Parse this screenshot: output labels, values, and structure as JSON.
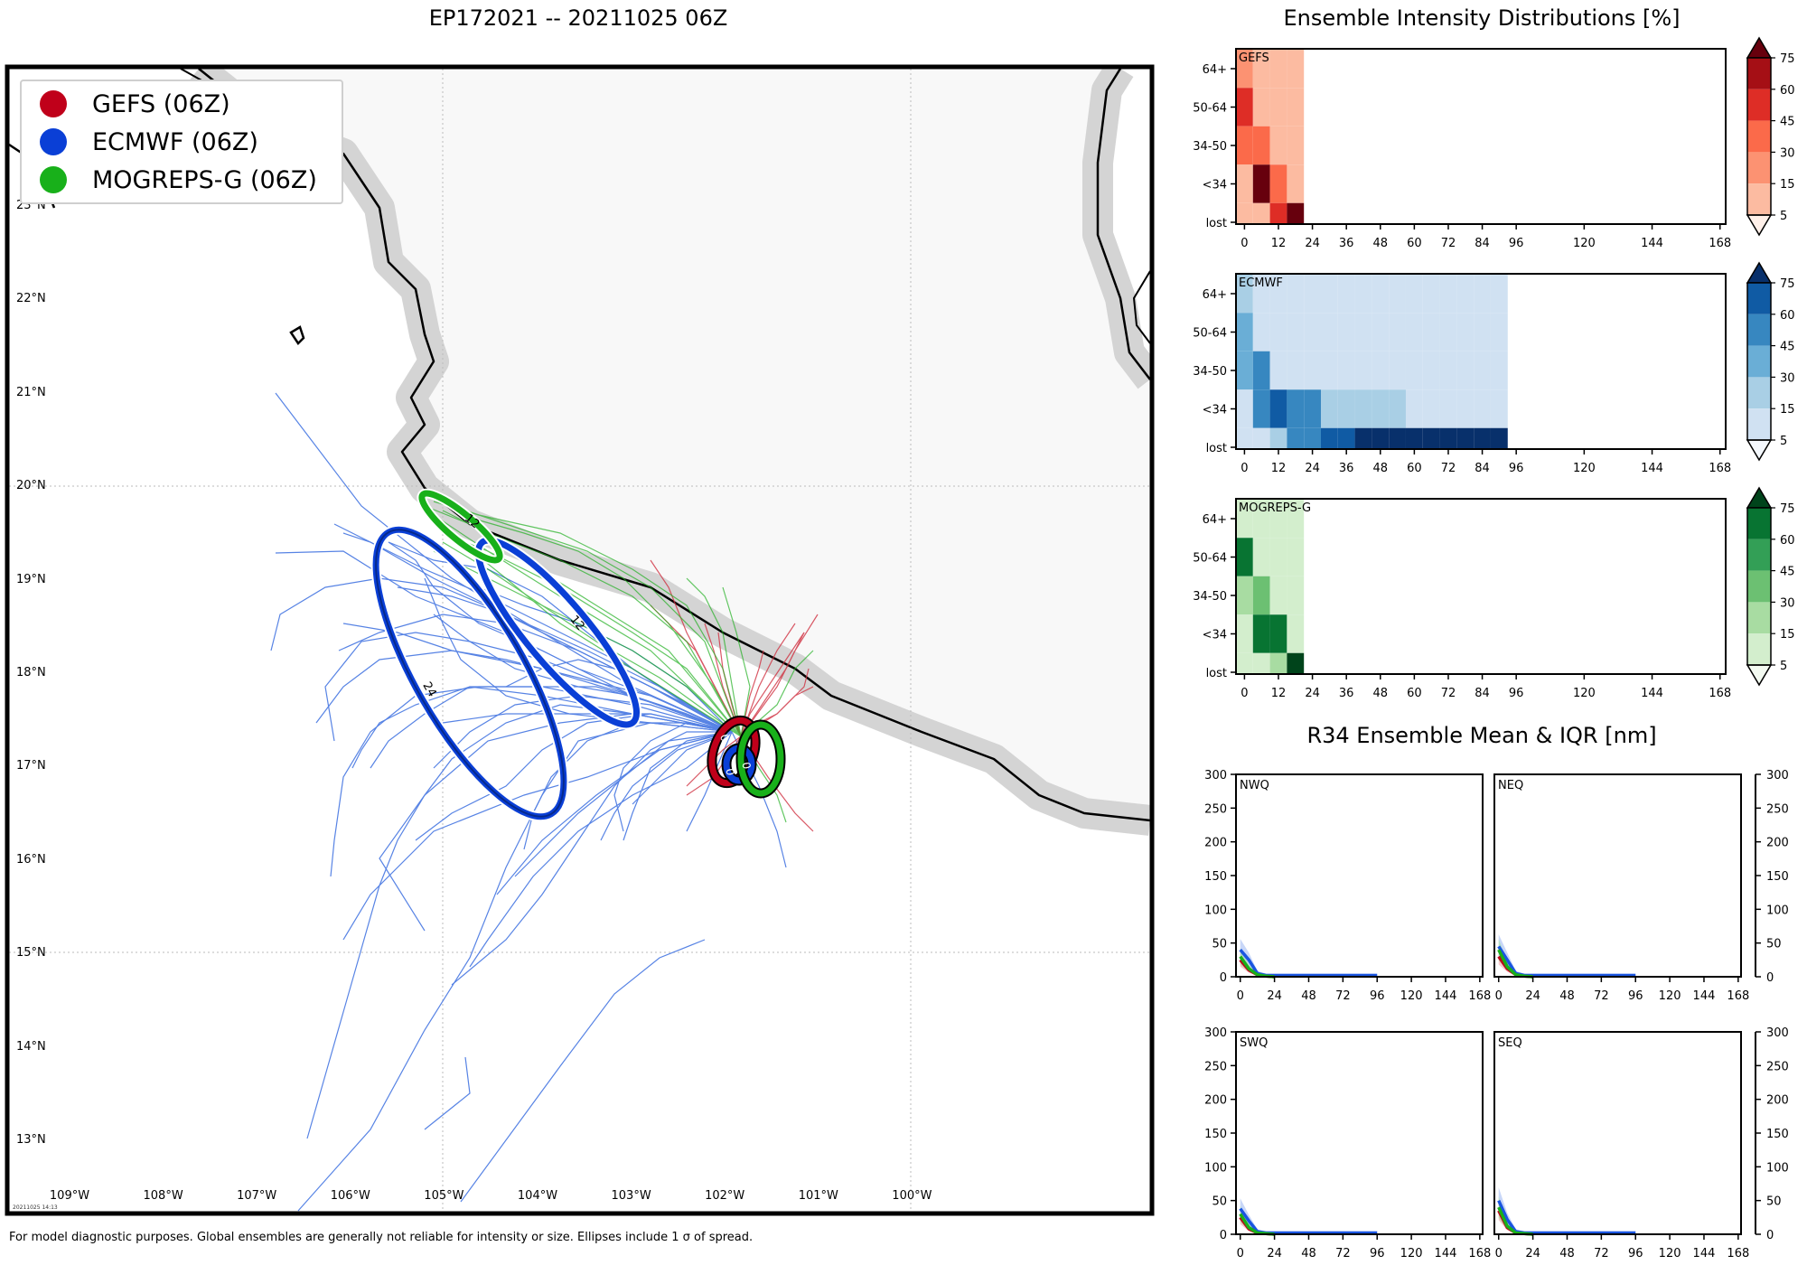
{
  "map": {
    "title": "EP172021 -- 20211025 06Z",
    "footnote": "For model diagnostic purposes. Global ensembles are generally not reliable for intensity or size. Ellipses include 1 σ of spread.",
    "stamp": "20211025 14:13",
    "lat_labels": [
      "23°N",
      "22°N",
      "21°N",
      "20°N",
      "19°N",
      "18°N",
      "17°N",
      "16°N",
      "15°N",
      "14°N",
      "13°N"
    ],
    "lon_labels": [
      "109°W",
      "108°W",
      "107°W",
      "106°W",
      "105°W",
      "104°W",
      "103°W",
      "102°W",
      "101°W",
      "100°W"
    ],
    "legend": [
      {
        "label": "GEFS (06Z)",
        "color": "#c0001a"
      },
      {
        "label": "ECMWF (06Z)",
        "color": "#0a3fd6"
      },
      {
        "label": "MOGREPS-G (06Z)",
        "color": "#18b01a"
      }
    ],
    "ellipse_labels": {
      "ecmwf_24": "24",
      "ecmwf_12": "12",
      "mogreps_12": "12",
      "gefs_0": "0",
      "ecmwf_0": "0",
      "mogreps_0": "0"
    }
  },
  "intensity": {
    "title": "Ensemble Intensity Distributions [%]",
    "y_categories": [
      "64+",
      "50-64",
      "34-50",
      "<34",
      "lost"
    ],
    "x_ticks": [
      "0",
      "12",
      "24",
      "36",
      "48",
      "60",
      "72",
      "84",
      "96",
      "120",
      "144",
      "168"
    ],
    "colorbar_ticks": [
      "75",
      "60",
      "45",
      "30",
      "15",
      "5"
    ],
    "panels": [
      {
        "name": "GEFS",
        "colors": [
          "#fff0e9",
          "#fcbba1",
          "#fc9272",
          "#fb6a4a",
          "#de2d26",
          "#a50f15",
          "#67000d"
        ]
      },
      {
        "name": "ECMWF",
        "colors": [
          "#f4f8fd",
          "#d0e1f2",
          "#a9cfe5",
          "#6aaed6",
          "#3787c0",
          "#105ba4",
          "#08306b"
        ]
      },
      {
        "name": "MOGREPS-G",
        "colors": [
          "#f3faf1",
          "#d3eecd",
          "#a8dca2",
          "#6cc072",
          "#339f56",
          "#087432",
          "#00441b"
        ]
      }
    ]
  },
  "r34": {
    "title": "R34 Ensemble Mean & IQR [nm]",
    "y_ticks": [
      "300",
      "250",
      "200",
      "150",
      "100",
      "50",
      "0"
    ],
    "x_ticks": [
      "0",
      "24",
      "48",
      "72",
      "96",
      "120",
      "144",
      "168"
    ],
    "quadrants": [
      "NWQ",
      "NEQ",
      "SWQ",
      "SEQ"
    ]
  },
  "chart_data": [
    {
      "type": "heatmap",
      "title": "GEFS",
      "x": [
        0,
        6,
        12,
        18
      ],
      "y": [
        "lost",
        "<34",
        "34-50",
        "50-64",
        "64+"
      ],
      "values_percent": {
        "64+": [
          15,
          5,
          5,
          5
        ],
        "50-64": [
          50,
          5,
          5,
          5
        ],
        "34-50": [
          35,
          35,
          5,
          5
        ],
        "<34": [
          5,
          85,
          40,
          5
        ],
        "lost": [
          5,
          5,
          55,
          90
        ]
      },
      "xlim": [
        -3,
        170
      ]
    },
    {
      "type": "heatmap",
      "title": "ECMWF",
      "x": [
        0,
        6,
        12,
        18,
        24,
        30,
        36,
        42,
        48,
        54,
        60,
        66,
        72,
        78,
        84,
        90
      ],
      "y": [
        "lost",
        "<34",
        "34-50",
        "50-64",
        "64+"
      ],
      "values_percent": {
        "64+": [
          20,
          5,
          5,
          5,
          5,
          5,
          5,
          5,
          5,
          5,
          5,
          5,
          5,
          5,
          5,
          5
        ],
        "50-64": [
          40,
          5,
          5,
          5,
          5,
          5,
          5,
          5,
          5,
          5,
          5,
          5,
          5,
          5,
          5,
          5
        ],
        "34-50": [
          35,
          45,
          10,
          5,
          5,
          5,
          5,
          5,
          5,
          5,
          5,
          5,
          5,
          5,
          5,
          5
        ],
        "<34": [
          5,
          50,
          70,
          45,
          45,
          25,
          25,
          25,
          25,
          20,
          10,
          5,
          5,
          5,
          5,
          5
        ],
        "lost": [
          5,
          5,
          15,
          45,
          45,
          60,
          60,
          80,
          80,
          80,
          80,
          80,
          80,
          80,
          80,
          80
        ]
      },
      "xlim": [
        -3,
        170
      ]
    },
    {
      "type": "heatmap",
      "title": "MOGREPS-G",
      "x": [
        0,
        6,
        12,
        18
      ],
      "y": [
        "lost",
        "<34",
        "34-50",
        "50-64",
        "64+"
      ],
      "values_percent": {
        "64+": [
          10,
          5,
          5,
          5
        ],
        "50-64": [
          60,
          5,
          5,
          5
        ],
        "34-50": [
          25,
          30,
          5,
          5
        ],
        "<34": [
          5,
          65,
          65,
          5
        ],
        "lost": [
          5,
          5,
          25,
          95
        ]
      },
      "xlim": [
        -3,
        170
      ]
    },
    {
      "type": "line",
      "title": "NWQ",
      "ylim": [
        0,
        300
      ],
      "xlim": [
        -3,
        170
      ],
      "series": [
        {
          "name": "GEFS",
          "x": [
            0,
            6,
            12,
            18,
            24
          ],
          "y": [
            25,
            10,
            3,
            1,
            0
          ]
        },
        {
          "name": "ECMWF",
          "x": [
            0,
            6,
            12,
            18,
            24,
            48,
            72,
            96
          ],
          "y": [
            40,
            25,
            5,
            2,
            2,
            2,
            2,
            2
          ]
        },
        {
          "name": "MOGREPS-G",
          "x": [
            0,
            6,
            12,
            18,
            24
          ],
          "y": [
            30,
            12,
            3,
            1,
            0
          ]
        }
      ]
    },
    {
      "type": "line",
      "title": "NEQ",
      "ylim": [
        0,
        300
      ],
      "xlim": [
        -3,
        170
      ],
      "series": [
        {
          "name": "GEFS",
          "x": [
            0,
            6,
            12,
            18,
            24
          ],
          "y": [
            30,
            12,
            3,
            1,
            0
          ]
        },
        {
          "name": "ECMWF",
          "x": [
            0,
            6,
            12,
            18,
            24,
            48,
            72,
            96
          ],
          "y": [
            45,
            25,
            5,
            2,
            2,
            2,
            2,
            2
          ]
        },
        {
          "name": "MOGREPS-G",
          "x": [
            0,
            6,
            12,
            18,
            24
          ],
          "y": [
            40,
            15,
            3,
            1,
            0
          ]
        }
      ]
    },
    {
      "type": "line",
      "title": "SWQ",
      "ylim": [
        0,
        300
      ],
      "xlim": [
        -3,
        170
      ],
      "series": [
        {
          "name": "GEFS",
          "x": [
            0,
            6,
            12,
            18,
            24
          ],
          "y": [
            25,
            8,
            2,
            1,
            0
          ]
        },
        {
          "name": "ECMWF",
          "x": [
            0,
            6,
            12,
            18,
            24,
            48,
            72,
            96
          ],
          "y": [
            38,
            20,
            4,
            2,
            2,
            2,
            2,
            2
          ]
        },
        {
          "name": "MOGREPS-G",
          "x": [
            0,
            6,
            12,
            18,
            24
          ],
          "y": [
            30,
            10,
            2,
            1,
            0
          ]
        }
      ]
    },
    {
      "type": "line",
      "title": "SEQ",
      "ylim": [
        0,
        300
      ],
      "xlim": [
        -3,
        170
      ],
      "series": [
        {
          "name": "GEFS",
          "x": [
            0,
            6,
            12,
            18,
            24
          ],
          "y": [
            35,
            10,
            2,
            1,
            0
          ]
        },
        {
          "name": "ECMWF",
          "x": [
            0,
            6,
            12,
            18,
            24,
            48,
            72,
            96
          ],
          "y": [
            50,
            22,
            4,
            2,
            2,
            2,
            2,
            2
          ]
        },
        {
          "name": "MOGREPS-G",
          "x": [
            0,
            6,
            12,
            18,
            24
          ],
          "y": [
            40,
            12,
            2,
            1,
            0
          ]
        }
      ]
    }
  ]
}
